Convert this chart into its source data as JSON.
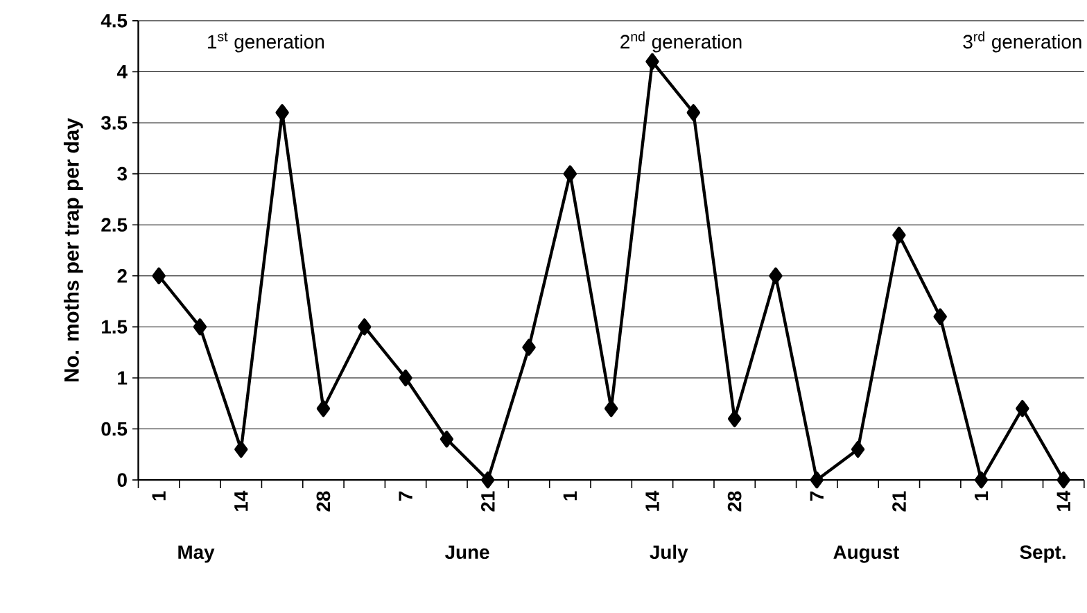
{
  "chart_data": {
    "type": "line",
    "ylabel": "No. moths per trap per day",
    "categories": [
      "1",
      null,
      "14",
      null,
      "28",
      null,
      "7",
      null,
      "21",
      null,
      "1",
      null,
      "14",
      null,
      "28",
      null,
      "7",
      null,
      "21",
      null,
      "1",
      null,
      "14"
    ],
    "series": [
      {
        "color": "#000000",
        "values": [
          2,
          1.5,
          0.3,
          3.6,
          0.7,
          1.5,
          1.0,
          0.4,
          0,
          1.3,
          3.0,
          0.7,
          4.1,
          3.6,
          0.6,
          2.0,
          0,
          0.3,
          2.4,
          1.6,
          0,
          0.7,
          0
        ]
      }
    ],
    "ylim": [
      0,
      4.5
    ],
    "yticks": [
      0,
      0.5,
      1,
      1.5,
      2,
      2.5,
      3,
      3.5,
      4,
      4.5
    ],
    "grid": "y",
    "marker": "diamond",
    "line_style": "solid",
    "annotations": [
      "May",
      "June",
      "July",
      "August",
      "Sept.",
      "1$^{st}$ generation",
      "2$^{nd}$ generation",
      "3$^{rd}$ generation"
    ]
  }
}
